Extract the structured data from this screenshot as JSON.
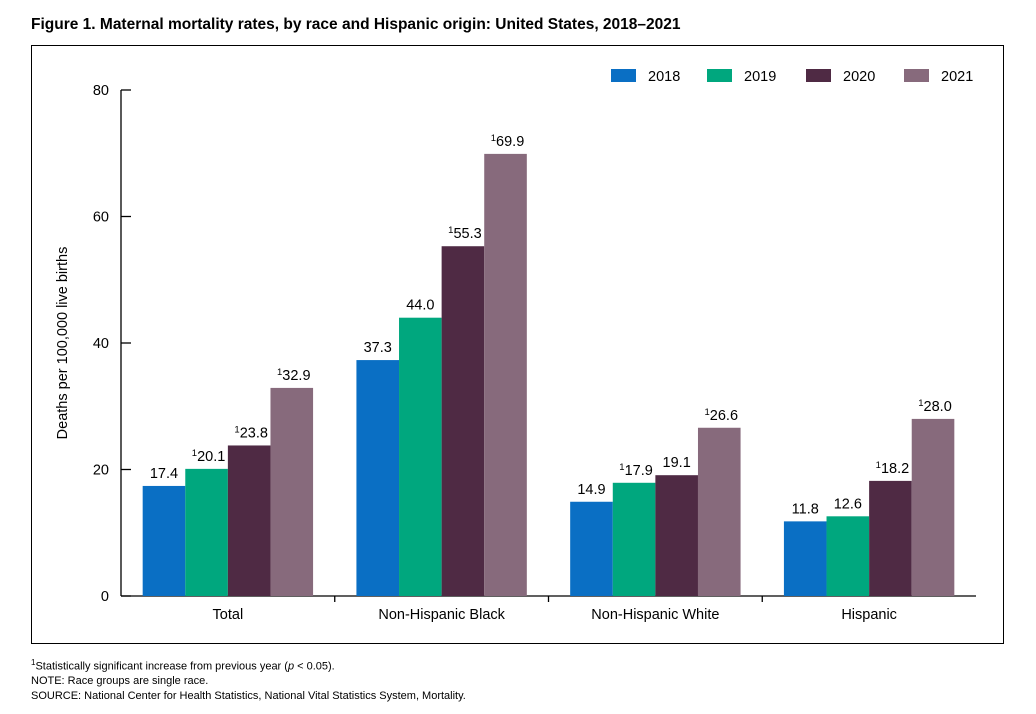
{
  "figure": {
    "title": "Figure 1. Maternal mortality rates, by race and Hispanic origin: United States, 2018–2021"
  },
  "chart_data": {
    "type": "bar",
    "ylabel": "Deaths per 100,000 live births",
    "ylim": [
      0,
      80
    ],
    "yticks": [
      0,
      20,
      40,
      60,
      80
    ],
    "categories": [
      "Total",
      "Non-Hispanic Black",
      "Non-Hispanic White",
      "Hispanic"
    ],
    "legend_position": "top-right",
    "series": [
      {
        "name": "2018",
        "color": "#0a6fc4",
        "values": [
          17.4,
          37.3,
          14.9,
          11.8
        ],
        "significant": [
          false,
          false,
          false,
          false
        ],
        "labels": [
          "17.4",
          "37.3",
          "14.9",
          "11.8"
        ]
      },
      {
        "name": "2019",
        "color": "#00a77e",
        "values": [
          20.1,
          44.0,
          17.9,
          12.6
        ],
        "significant": [
          true,
          false,
          true,
          false
        ],
        "labels": [
          "20.1",
          "44.0",
          "17.9",
          "12.6"
        ]
      },
      {
        "name": "2020",
        "color": "#4f2a44",
        "values": [
          23.8,
          55.3,
          19.1,
          18.2
        ],
        "significant": [
          true,
          true,
          false,
          true
        ],
        "labels": [
          "23.8",
          "55.3",
          "19.1",
          "18.2"
        ]
      },
      {
        "name": "2021",
        "color": "#876a7c",
        "values": [
          32.9,
          69.9,
          26.6,
          28.0
        ],
        "significant": [
          true,
          true,
          true,
          true
        ],
        "labels": [
          "32.9",
          "69.9",
          "26.6",
          "28.0"
        ]
      }
    ],
    "significance_marker": "1"
  },
  "footnotes": {
    "significance_marker": "1",
    "significance_text_before": "Statistically significant increase from previous year (",
    "significance_p": "p",
    "significance_text_after": " < 0.05).",
    "note": "NOTE: Race groups are single race.",
    "source": "SOURCE: National Center for Health Statistics, National Vital Statistics System, Mortality."
  }
}
